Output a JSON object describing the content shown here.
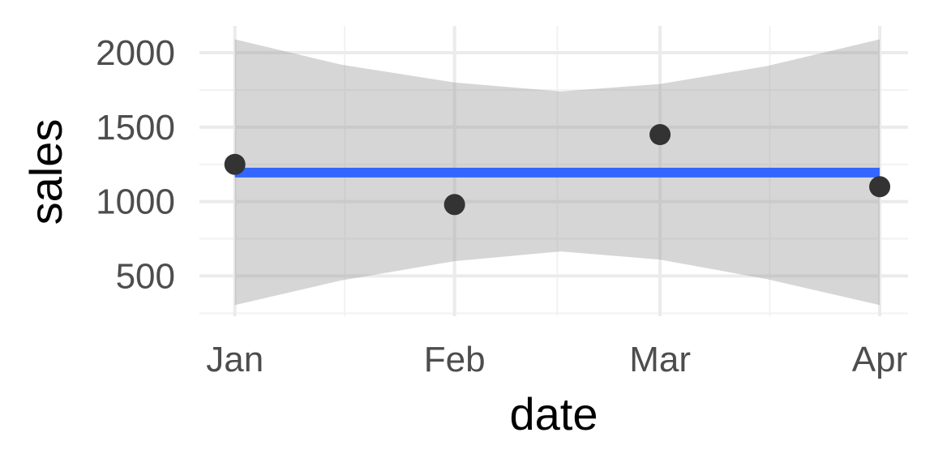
{
  "chart_data": {
    "type": "line",
    "xlabel": "date",
    "ylabel": "sales",
    "x_ticks": [
      "Jan",
      "Feb",
      "Mar",
      "Apr"
    ],
    "x_range": [
      "2023-12-27",
      "2024-04-05"
    ],
    "ylim": [
      230,
      2180
    ],
    "y_ticks": [
      500,
      1000,
      1500,
      2000
    ],
    "y_minor_ticks": [
      250,
      750,
      1250,
      1750
    ],
    "grid": true,
    "points": [
      {
        "x": "2024-01-01",
        "y": 1250
      },
      {
        "x": "2024-02-01",
        "y": 980
      },
      {
        "x": "2024-03-01",
        "y": 1450
      },
      {
        "x": "2024-04-01",
        "y": 1100
      }
    ],
    "smooth": {
      "method": "linear fit",
      "x_start": "2024-01-01",
      "x_end": "2024-04-01",
      "y_start": 1195,
      "y_end": 1195
    },
    "confidence_band": [
      {
        "x": "2024-01-01",
        "lower": 305,
        "upper": 2090
      },
      {
        "x": "2024-01-16",
        "lower": 470,
        "upper": 1920
      },
      {
        "x": "2024-02-01",
        "lower": 600,
        "upper": 1800
      },
      {
        "x": "2024-02-16",
        "lower": 665,
        "upper": 1740
      },
      {
        "x": "2024-03-01",
        "lower": 610,
        "upper": 1790
      },
      {
        "x": "2024-03-16",
        "lower": 480,
        "upper": 1910
      },
      {
        "x": "2024-04-01",
        "lower": 305,
        "upper": 2090
      }
    ],
    "colors": {
      "point": "#333333",
      "fit_line": "#3366ff",
      "band": "#999999",
      "grid_major": "#ebebeb",
      "grid_minor": "#f2f2f2"
    }
  }
}
